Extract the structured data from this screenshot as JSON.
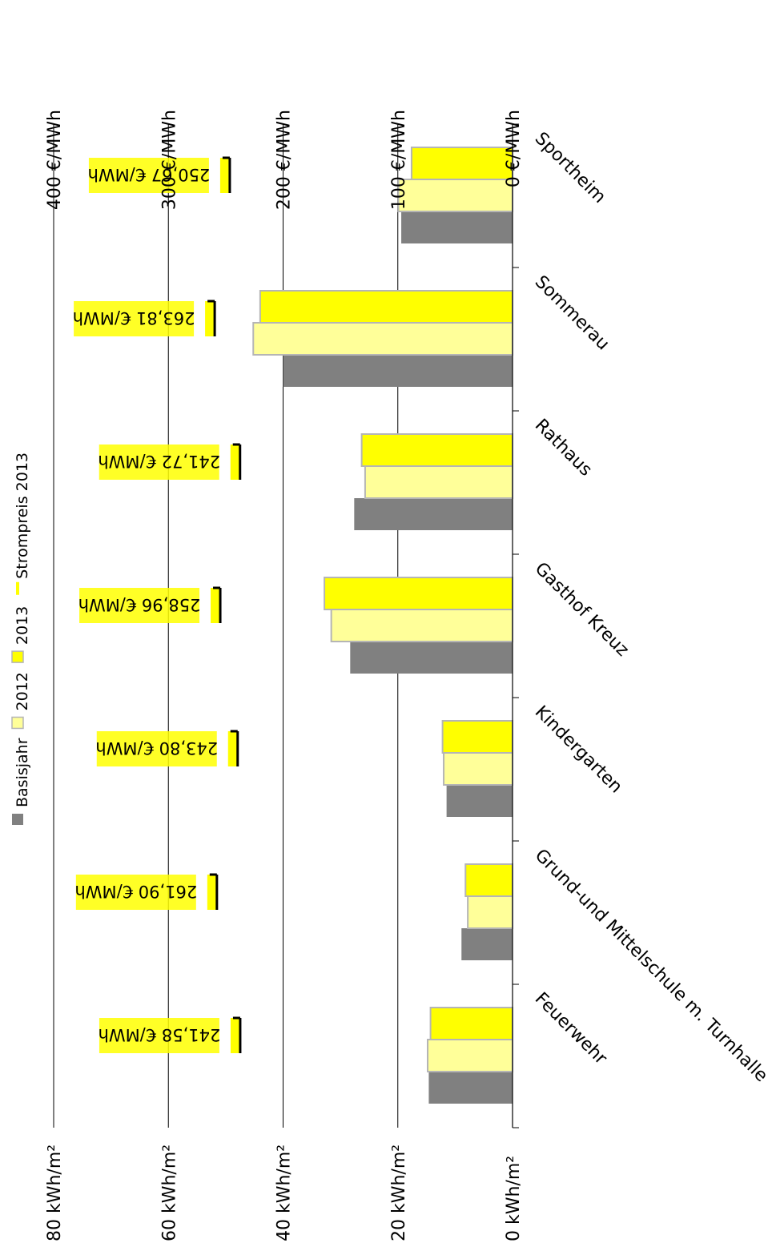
{
  "chart_data": {
    "type": "bar",
    "orientation": "rotated",
    "categories": [
      "Feuerwehr",
      "Grund-und Mittelschule m. Turnhalle",
      "Kindergarten",
      "Gasthof Kreuz",
      "Rathaus",
      "Sommerau",
      "Sportheim"
    ],
    "series": [
      {
        "name": "Basisjahr",
        "color": "#808080",
        "values": [
          14.6,
          8.9,
          11.5,
          28.3,
          27.6,
          40.0,
          19.4
        ]
      },
      {
        "name": "2012",
        "color": "#ffff99",
        "values": [
          14.8,
          7.8,
          12.0,
          31.6,
          25.7,
          45.2,
          19.9
        ]
      },
      {
        "name": "2013",
        "color": "#ffff00",
        "values": [
          14.3,
          8.2,
          12.2,
          32.8,
          26.3,
          44.0,
          17.6
        ]
      }
    ],
    "price_series": {
      "name": "Strompreis 2013",
      "unit": "€/MWh",
      "values": [
        241.58,
        261.9,
        243.8,
        258.96,
        241.72,
        263.81,
        250.67
      ],
      "labels": [
        "241,58 €/MWh",
        "261,90 €/MWh",
        "243,80 €/MWh",
        "258,96 €/MWh",
        "241,72 €/MWh",
        "263,81 €/MWh",
        "250,67 €/MWh"
      ]
    },
    "primary_axis": {
      "min": 0,
      "max": 80,
      "ticks": [
        "0 kWh/m²",
        "20 kWh/m²",
        "40 kWh/m²",
        "60 kWh/m²",
        "80 kWh/m²"
      ]
    },
    "secondary_axis": {
      "min": 0,
      "max": 400,
      "ticks": [
        "0 €/MWh",
        "100 €/MWh",
        "200 €/MWh",
        "300 €/MWh",
        "400 €/MWh"
      ]
    },
    "grid": true,
    "legend": [
      "Basisjahr",
      "2012",
      "2013",
      "Strompreis 2013"
    ],
    "legend_position": "top"
  }
}
